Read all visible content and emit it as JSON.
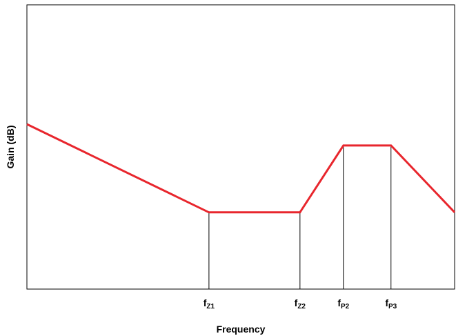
{
  "chart_data": {
    "type": "line",
    "title": "",
    "xlabel": "Frequency",
    "ylabel": "Gain (dB)",
    "grid": false,
    "x_scale": "log",
    "x_ticks": [
      {
        "label": "f",
        "sub": "Z1",
        "x": 1000
      },
      {
        "label": "f",
        "sub": "Z2",
        "x": 10000
      },
      {
        "label": "f",
        "sub": "P2",
        "x": 30000
      },
      {
        "label": "f",
        "sub": "P3",
        "x": 100000
      }
    ],
    "xlim": [
      10,
      500000
    ],
    "ylim": [
      0,
      100
    ],
    "series": [
      {
        "color": "#e8262d",
        "points": [
          {
            "x": 10,
            "y": 58
          },
          {
            "x": 1000,
            "y": 27
          },
          {
            "x": 10000,
            "y": 27
          },
          {
            "x": 30000,
            "y": 50.5
          },
          {
            "x": 100000,
            "y": 50.5
          },
          {
            "x": 500000,
            "y": 27
          }
        ]
      }
    ],
    "markers": [
      {
        "x": 1000,
        "y": 27,
        "color": "#000000"
      },
      {
        "x": 10000,
        "y": 27,
        "color": "#000000"
      },
      {
        "x": 30000,
        "y": 50.5,
        "color": "#000000"
      },
      {
        "x": 100000,
        "y": 50.5,
        "color": "#000000"
      }
    ],
    "colors": {
      "frame": "#000000",
      "background": "#ffffff"
    }
  }
}
